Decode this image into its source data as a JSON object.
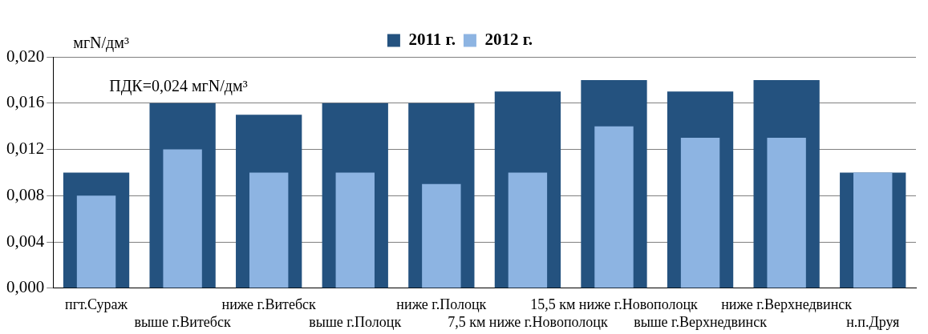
{
  "chart_data": {
    "type": "bar",
    "ylabel": "мгN/дм³",
    "annotations": [
      "ПДК=0,024 мгN/дм³"
    ],
    "categories": [
      "пгт.Сураж",
      "выше г.Витебск",
      "ниже г.Витебск",
      "выше г.Полоцк",
      "ниже г.Полоцк",
      "7,5 км ниже г.Новополоцк",
      "15,5 км ниже г.Новополоцк",
      "выше г.Верхнедвинск",
      "ниже г.Верхнедвинск",
      "н.п.Друя"
    ],
    "series": [
      {
        "name": "2011 г.",
        "color": "#24527f",
        "values": [
          0.01,
          0.016,
          0.015,
          0.016,
          0.016,
          0.017,
          0.018,
          0.017,
          0.018,
          0.01
        ]
      },
      {
        "name": "2012 г.",
        "color": "#8db4e2",
        "values": [
          0.008,
          0.012,
          0.01,
          0.01,
          0.009,
          0.01,
          0.014,
          0.013,
          0.013,
          0.01
        ]
      }
    ],
    "ylim": [
      0,
      0.02
    ],
    "yticks": [
      {
        "value": 0,
        "label": "0,000"
      },
      {
        "value": 0.004,
        "label": "0,004"
      },
      {
        "value": 0.008,
        "label": "0,008"
      },
      {
        "value": 0.012,
        "label": "0,012"
      },
      {
        "value": 0.016,
        "label": "0,016"
      },
      {
        "value": 0.02,
        "label": "0,020"
      }
    ],
    "grid": "y",
    "legend": "top"
  }
}
